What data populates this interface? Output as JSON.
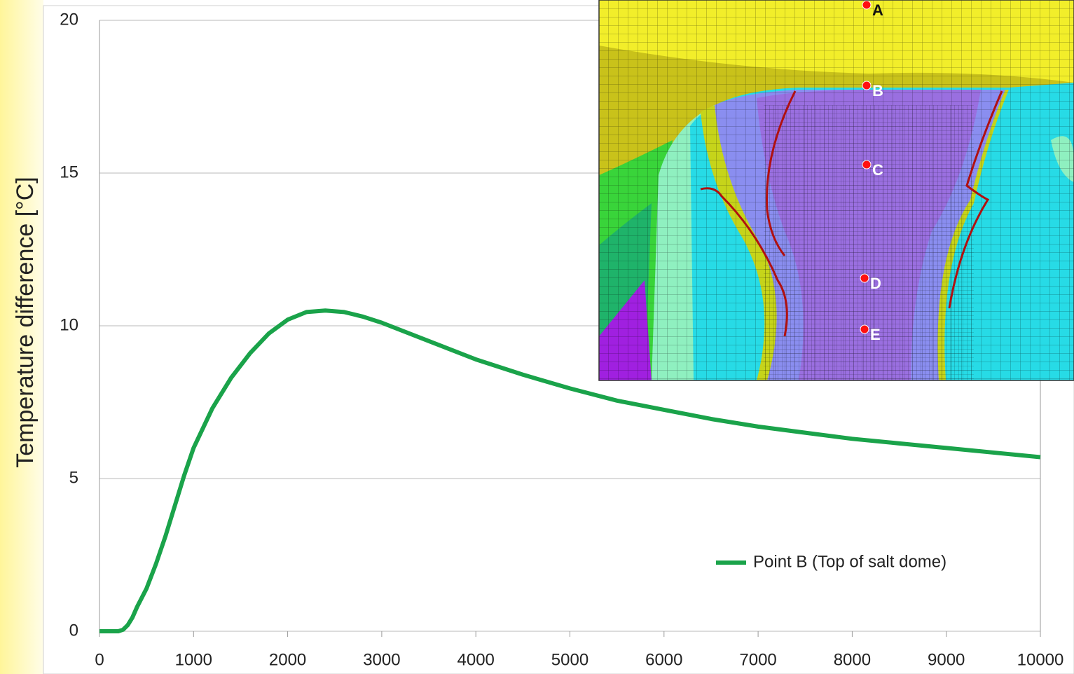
{
  "chart_data": {
    "type": "line",
    "y_label": "Temperature difference [°C]",
    "x": [
      0,
      200,
      250,
      300,
      350,
      400,
      500,
      600,
      700,
      800,
      900,
      1000,
      1200,
      1400,
      1600,
      1800,
      2000,
      2200,
      2400,
      2600,
      2800,
      3000,
      3500,
      4000,
      4500,
      5000,
      5500,
      6000,
      6500,
      7000,
      7500,
      8000,
      8500,
      9000,
      9500,
      10000
    ],
    "series": [
      {
        "name": "Point B (Top of salt dome)",
        "color": "#1aa34a",
        "values": [
          0,
          0,
          0.05,
          0.2,
          0.45,
          0.8,
          1.4,
          2.2,
          3.1,
          4.1,
          5.1,
          6.0,
          7.3,
          8.3,
          9.1,
          9.75,
          10.2,
          10.45,
          10.5,
          10.45,
          10.3,
          10.1,
          9.5,
          8.9,
          8.4,
          7.95,
          7.55,
          7.25,
          6.95,
          6.7,
          6.5,
          6.3,
          6.15,
          6.0,
          5.85,
          5.7
        ]
      }
    ],
    "xlim": [
      0,
      10000
    ],
    "xticks": [
      0,
      1000,
      2000,
      3000,
      4000,
      5000,
      6000,
      7000,
      8000,
      9000,
      10000
    ],
    "ylim": [
      0,
      20
    ],
    "yticks": [
      0,
      5,
      10,
      15,
      20
    ],
    "grid": true,
    "legend": "lower right"
  },
  "inset": {
    "points": [
      "A",
      "B",
      "C",
      "D",
      "E"
    ]
  }
}
